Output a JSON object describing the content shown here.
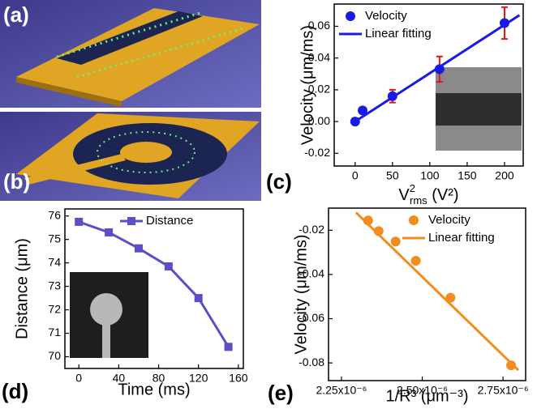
{
  "images": [
    {
      "panel": "(a)"
    },
    {
      "panel": "(b)"
    }
  ],
  "chart_data": [
    {
      "type": "scatter",
      "panel": "(c)",
      "xlabel": {
        "base": "V",
        "sup": "2",
        "sub": "rms",
        "unit": " (V²)"
      },
      "ylabel": "Velocity (μm/ms)",
      "xlim": [
        -28,
        225
      ],
      "xticks": [
        0,
        50,
        100,
        150,
        200
      ],
      "ylim": [
        -0.028,
        0.074
      ],
      "yticks": [
        -0.02,
        {
          "value": 0,
          "label": "0.00"
        },
        0.02,
        0.04,
        0.06
      ],
      "legend": "upper left",
      "grid": false,
      "series": [
        {
          "name": "Velocity",
          "kind": "scatter",
          "marker": "circle",
          "color": "#1a1ae6",
          "error_color": "#e01818",
          "x": [
            0,
            10,
            50,
            113,
            200
          ],
          "values": [
            0.0,
            0.007,
            0.016,
            0.033,
            0.062
          ],
          "errors": [
            0.002,
            0.002,
            0.004,
            0.008,
            0.01
          ]
        },
        {
          "name": "Linear fitting",
          "kind": "line",
          "color": "#1a1ae6",
          "x": [
            -5,
            220
          ],
          "values": [
            -0.0015,
            0.067
          ]
        }
      ]
    },
    {
      "type": "line",
      "panel": "(d)",
      "xlabel": "Time (ms)",
      "ylabel": "Distance (μm)",
      "xlim": [
        -14,
        165
      ],
      "xticks": [
        0,
        40,
        80,
        120,
        160
      ],
      "ylim": [
        69.5,
        76.3
      ],
      "yticks": [
        70,
        71,
        72,
        73,
        74,
        75,
        76
      ],
      "legend": "upper right",
      "grid": false,
      "series": [
        {
          "name": "Distance",
          "kind": "line",
          "marker": "square",
          "color": "#5b4fc8",
          "x": [
            0,
            30,
            60,
            90,
            120,
            150
          ],
          "values": [
            75.75,
            75.3,
            74.62,
            73.85,
            72.5,
            70.42
          ]
        }
      ]
    },
    {
      "type": "scatter",
      "panel": "(e)",
      "xlabel": "1/R³ (μm⁻³)",
      "ylabel": "Velocity (μm/ms)",
      "xlim": [
        2.21e-06,
        2.82e-06
      ],
      "xticks": [
        {
          "value": 2.25e-06,
          "label": "2.25x10⁻⁶"
        },
        {
          "value": 2.5e-06,
          "label": "2.50x10⁻⁶"
        },
        {
          "value": 2.75e-06,
          "label": "2.75x10⁻⁶"
        }
      ],
      "ylim": [
        -0.088,
        -0.01
      ],
      "yticks": [
        -0.08,
        -0.06,
        -0.04,
        -0.02
      ],
      "legend": "upper right",
      "grid": false,
      "series": [
        {
          "name": "Velocity",
          "kind": "scatter",
          "marker": "circle",
          "color": "#f28c1e",
          "x": [
            2.3325e-06,
            2.365e-06,
            2.4175e-06,
            2.48e-06,
            2.5875e-06,
            2.775e-06
          ],
          "values": [
            -0.0156,
            -0.0204,
            -0.0251,
            -0.0338,
            -0.0505,
            -0.0811
          ]
        },
        {
          "name": "Linear fitting",
          "kind": "line",
          "color": "#f28c1e",
          "x": [
            2.295e-06,
            2.7975e-06
          ],
          "values": [
            -0.012,
            -0.0833
          ]
        }
      ]
    }
  ]
}
